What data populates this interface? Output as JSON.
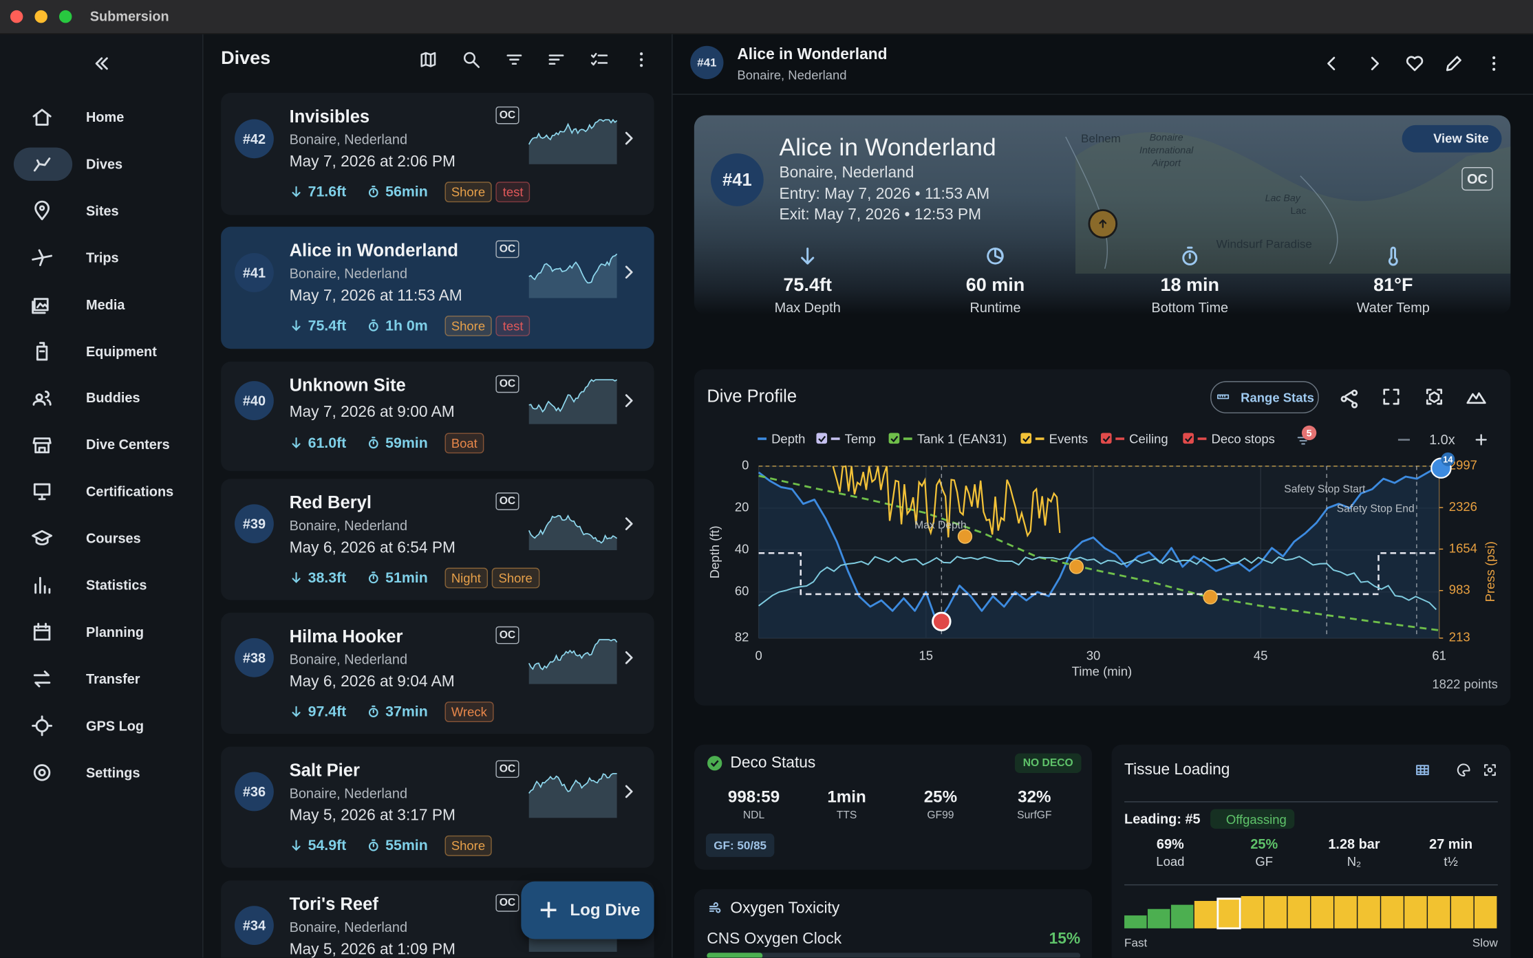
{
  "window": {
    "title": "Submersion"
  },
  "sidebar": {
    "items": [
      "Home",
      "Dives",
      "Sites",
      "Trips",
      "Media",
      "Equipment",
      "Buddies",
      "Dive Centers",
      "Certifications",
      "Courses",
      "Statistics",
      "Planning",
      "Transfer",
      "GPS Log",
      "Settings"
    ]
  },
  "dive_list": {
    "title": "Dives",
    "fab": "Log Dive",
    "dives": [
      {
        "number": "#42",
        "name": "Invisibles",
        "location": "Bonaire, Nederland",
        "date": "May 7, 2026 at 2:06 PM",
        "depth": "71.6ft",
        "duration": "56min",
        "badge": "OC",
        "tags": [
          {
            "text": "Shore",
            "color": "#e8a14a"
          },
          {
            "text": "test",
            "color": "#e0585a"
          }
        ]
      },
      {
        "number": "#41",
        "name": "Alice in Wonderland",
        "location": "Bonaire, Nederland",
        "date": "May 7, 2026 at 11:53 AM",
        "depth": "75.4ft",
        "duration": "1h 0m",
        "badge": "OC",
        "tags": [
          {
            "text": "Shore",
            "color": "#e8a14a"
          },
          {
            "text": "test",
            "color": "#e0585a"
          }
        ]
      },
      {
        "number": "#40",
        "name": "Unknown Site",
        "date": "May 7, 2026 at 9:00 AM",
        "depth": "61.0ft",
        "duration": "59min",
        "badge": "OC",
        "tags": [
          {
            "text": "Boat",
            "color": "#e8874a"
          }
        ]
      },
      {
        "number": "#39",
        "name": "Red Beryl",
        "location": "Bonaire, Nederland",
        "date": "May 6, 2026 at 6:54 PM",
        "depth": "38.3ft",
        "duration": "51min",
        "badge": "OC",
        "tags": [
          {
            "text": "Night",
            "color": "#e8a14a"
          },
          {
            "text": "Shore",
            "color": "#e8a14a"
          }
        ]
      },
      {
        "number": "#38",
        "name": "Hilma Hooker",
        "location": "Bonaire, Nederland",
        "date": "May 6, 2026 at 9:04 AM",
        "depth": "97.4ft",
        "duration": "37min",
        "badge": "OC",
        "tags": [
          {
            "text": "Wreck",
            "color": "#e8874a"
          }
        ]
      },
      {
        "number": "#36",
        "name": "Salt Pier",
        "location": "Bonaire, Nederland",
        "date": "May 5, 2026 at 3:17 PM",
        "depth": "54.9ft",
        "duration": "55min",
        "badge": "OC",
        "tags": [
          {
            "text": "Shore",
            "color": "#e8a14a"
          }
        ]
      },
      {
        "number": "#34",
        "name": "Tori's Reef",
        "location": "Bonaire, Nederland",
        "date": "May 5, 2026 at 1:09 PM",
        "badge": "OC",
        "tags": []
      }
    ]
  },
  "detail": {
    "header": {
      "number": "#41",
      "name": "Alice in Wonderland",
      "location": "Bonaire, Nederland"
    },
    "hero": {
      "number": "#41",
      "name": "Alice in Wonderland",
      "location": "Bonaire, Nederland",
      "entry": "Entry: May 7, 2026 • 11:53 AM",
      "exit": "Exit: May 7, 2026 • 12:53 PM",
      "view_site": "View Site",
      "badge": "OC",
      "map_labels": [
        "Belnem",
        "Bonaire",
        "International",
        "Airport",
        "Lac Bay",
        "Lac",
        "Windsurf Paradise"
      ],
      "stats": [
        {
          "value": "75.4ft",
          "label": "Max Depth"
        },
        {
          "value": "60 min",
          "label": "Runtime"
        },
        {
          "value": "18 min",
          "label": "Bottom Time"
        },
        {
          "value": "81°F",
          "label": "Water Temp"
        }
      ]
    },
    "profile": {
      "title": "Dive Profile",
      "range_stats": "Range Stats",
      "event_count": 5,
      "zoom": "1.0x",
      "points": "1822 points",
      "photo_count": 14,
      "chart": {
        "type": "line",
        "x_label": "Time (min)",
        "y_label": "Depth (ft)",
        "y2_label": "Press (psi)",
        "xlim": [
          0,
          61
        ],
        "xticks": [
          0,
          15,
          30,
          45,
          61
        ],
        "ylim": [
          0,
          82
        ],
        "y_inverted": true,
        "yticks": [
          0,
          20,
          40,
          60,
          82
        ],
        "y2lim": [
          213,
          2997
        ],
        "y2ticks": [
          2997,
          2326,
          1654,
          983,
          213
        ],
        "grid": true,
        "annotations": [
          "Max Depth",
          "Safety Stop Start",
          "Safety Stop End"
        ],
        "series": [
          {
            "name": "Depth",
            "color": "#3d8be0",
            "x": [
              0,
              1,
              2,
              3,
              4,
              5,
              6,
              7,
              8,
              9,
              10,
              11,
              12,
              13,
              14,
              15,
              16,
              17,
              18,
              19,
              20,
              21,
              22,
              23,
              24,
              25,
              26,
              27,
              28,
              29,
              30,
              31,
              32,
              33,
              34,
              35,
              36,
              37,
              38,
              39,
              40,
              41,
              42,
              43,
              44,
              45,
              46,
              47,
              48,
              49,
              50,
              51,
              52,
              53,
              54,
              55,
              56,
              57,
              58,
              59,
              60,
              61
            ],
            "values": [
              3,
              7,
              10,
              11,
              18,
              16,
              25,
              36,
              50,
              62,
              67,
              64,
              69,
              63,
              69,
              60,
              75,
              67,
              57,
              62,
              69,
              62,
              67,
              60,
              64,
              60,
              62,
              53,
              41,
              36,
              34,
              39,
              42,
              48,
              43,
              41,
              46,
              39,
              48,
              43,
              46,
              50,
              48,
              46,
              50,
              46,
              39,
              43,
              36,
              32,
              27,
              20,
              18,
              20,
              13,
              11,
              6,
              8,
              5,
              6,
              3,
              0
            ]
          },
          {
            "name": "Temp",
            "color": "#c5c0ef"
          },
          {
            "name": "Tank 1 (EAN31)",
            "color": "#6fbf4a",
            "axis": "y2",
            "x": [
              0,
              5,
              10,
              15,
              20,
              25,
              30,
              35,
              40,
              45,
              50,
              55,
              61
            ],
            "values": [
              2840,
              2640,
              2450,
              2238,
              1921,
              1526,
              1320,
              1130,
              893,
              735,
              609,
              482,
              340
            ]
          },
          {
            "name": "Events",
            "color": "#f3c238"
          },
          {
            "name": "Ceiling",
            "color": "#e14b4b"
          },
          {
            "name": "Deco stops",
            "color": "#e14b4b"
          }
        ]
      }
    },
    "deco": {
      "title": "Deco Status",
      "status": "NO DECO",
      "gf": "GF: 50/85",
      "stats": [
        {
          "value": "998:59",
          "label": "NDL"
        },
        {
          "value": "1min",
          "label": "TTS"
        },
        {
          "value": "25%",
          "label": "GF99"
        },
        {
          "value": "32%",
          "label": "SurfGF"
        }
      ]
    },
    "oxygen": {
      "title": "Oxygen Toxicity",
      "cns_label": "CNS Oxygen Clock",
      "cns_value": "15%"
    },
    "tissue": {
      "title": "Tissue Loading",
      "leading": "Leading: #5",
      "trend": "Offgassing",
      "fast": "Fast",
      "slow": "Slow",
      "stats": [
        {
          "value": "69%",
          "label": "Load"
        },
        {
          "value": "25%",
          "label": "GF"
        },
        {
          "value": "1.28 bar",
          "label": "N₂"
        },
        {
          "value": "27 min",
          "label": "t½"
        }
      ],
      "compartments": [
        {
          "value": 40,
          "color": "#4caf50"
        },
        {
          "value": 60,
          "color": "#4caf50"
        },
        {
          "value": 73,
          "color": "#4caf50"
        },
        {
          "value": 85,
          "color": "#f2c230"
        },
        {
          "value": 92,
          "color": "#f2c230"
        },
        {
          "value": 100,
          "color": "#f2c230"
        },
        {
          "value": 100,
          "color": "#f2c230"
        },
        {
          "value": 100,
          "color": "#f2c230"
        },
        {
          "value": 100,
          "color": "#f2c230"
        },
        {
          "value": 100,
          "color": "#f2c230"
        },
        {
          "value": 100,
          "color": "#f2c230"
        },
        {
          "value": 100,
          "color": "#f2c230"
        },
        {
          "value": 100,
          "color": "#f2c230"
        },
        {
          "value": 100,
          "color": "#f2c230"
        },
        {
          "value": 100,
          "color": "#f2c230"
        },
        {
          "value": 100,
          "color": "#f2c230"
        }
      ]
    }
  }
}
